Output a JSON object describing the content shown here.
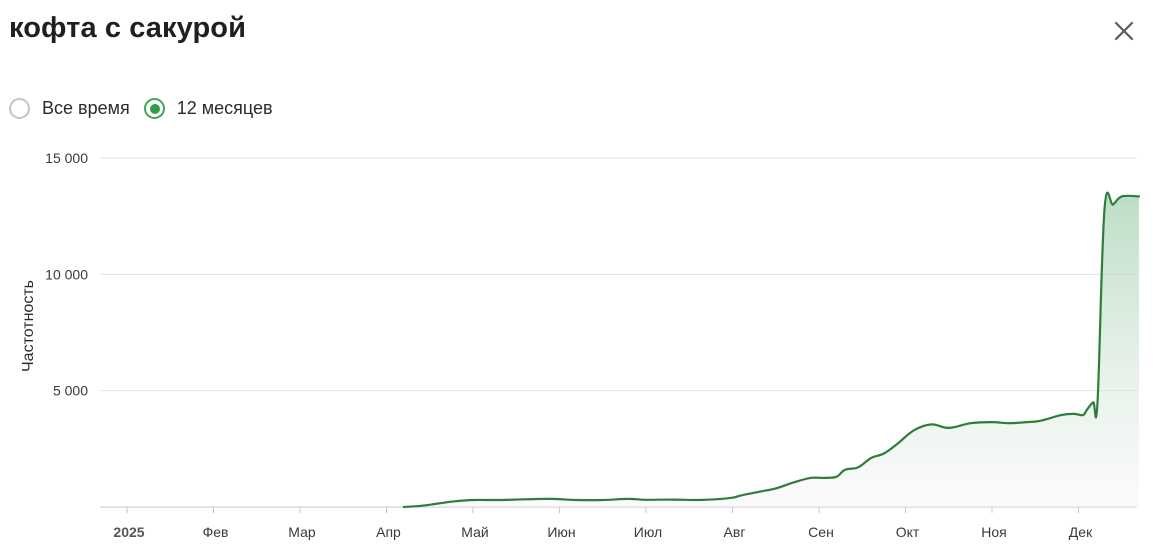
{
  "header": {
    "title": "кофта с сакурой"
  },
  "controls": {
    "close_icon": "close-icon",
    "radio_options": [
      {
        "label": "Все время",
        "checked": false
      },
      {
        "label": "12 месяцев",
        "checked": true
      }
    ]
  },
  "colors": {
    "line": "#2e7d3a",
    "area_top": "#a5d3b1",
    "area_bottom": "#f4f4f4",
    "radio_accent": "#2f9d4a",
    "grid": "#e2e2e2"
  },
  "chart_data": {
    "type": "area",
    "ylabel": "Частотность",
    "xlabel": "",
    "ylim": [
      0,
      15000
    ],
    "yticks": [
      {
        "value": 5000,
        "label": "5 000"
      },
      {
        "value": 10000,
        "label": "10 000"
      },
      {
        "value": 15000,
        "label": "15 000"
      }
    ],
    "xlim": [
      0,
      12.7
    ],
    "xticks": [
      {
        "label": "2025",
        "x": 0,
        "year": true
      },
      {
        "label": "Фев",
        "x": 1
      },
      {
        "label": "Мар",
        "x": 2
      },
      {
        "label": "Апр",
        "x": 3
      },
      {
        "label": "Май",
        "x": 4
      },
      {
        "label": "Июн",
        "x": 5
      },
      {
        "label": "Июл",
        "x": 6
      },
      {
        "label": "Авг",
        "x": 7
      },
      {
        "label": "Сен",
        "x": 8
      },
      {
        "label": "Окт",
        "x": 9
      },
      {
        "label": "Ноя",
        "x": 10
      },
      {
        "label": "Дек",
        "x": 11
      }
    ],
    "grid": true,
    "legend": "none",
    "series": [
      {
        "x": [
          3.2,
          3.4,
          3.6,
          3.8,
          4.0,
          4.3,
          4.6,
          4.9,
          5.2,
          5.5,
          5.8,
          6.0,
          6.3,
          6.6,
          6.8,
          7.0,
          7.1,
          7.3,
          7.5,
          7.7,
          7.9,
          8.05,
          8.2,
          8.3,
          8.45,
          8.6,
          8.75,
          8.9,
          9.1,
          9.3,
          9.5,
          9.75,
          10.0,
          10.2,
          10.4,
          10.55,
          10.8,
          10.95,
          11.05,
          11.1,
          11.17,
          11.22,
          11.3,
          11.4,
          11.5,
          11.7
        ],
        "y": [
          0,
          50,
          150,
          250,
          300,
          300,
          330,
          350,
          300,
          300,
          350,
          310,
          320,
          300,
          330,
          400,
          500,
          650,
          800,
          1050,
          1250,
          1250,
          1300,
          1600,
          1700,
          2100,
          2300,
          2700,
          3300,
          3550,
          3400,
          3600,
          3650,
          3600,
          3650,
          3700,
          3950,
          4000,
          3950,
          4200,
          4500,
          4500,
          12800,
          13000,
          13350,
          13350
        ]
      }
    ]
  }
}
